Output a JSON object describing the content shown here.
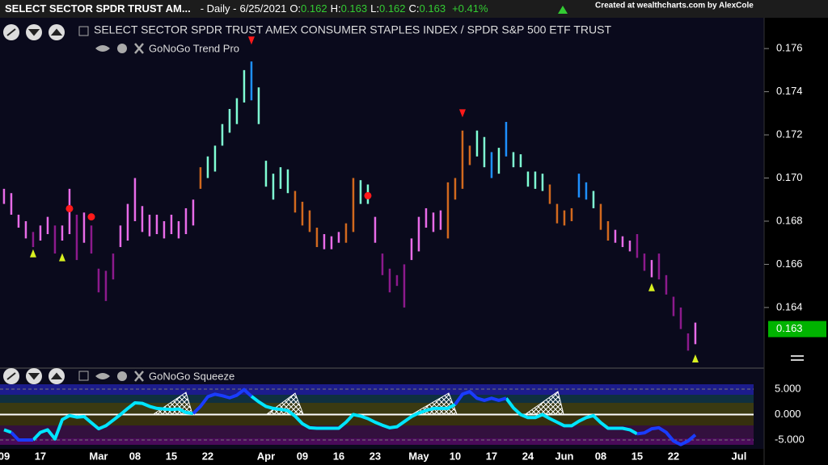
{
  "header": {
    "symbol": "SELECT SECTOR SPDR TRUST AM...",
    "interval": "- Daily -",
    "date": "6/25/2021",
    "ohlc": [
      {
        "label": "O:",
        "value": 0.162
      },
      {
        "label": "H:",
        "value": 0.163
      },
      {
        "label": "L:",
        "value": 0.162
      },
      {
        "label": "C:",
        "value": 0.163
      }
    ],
    "change": "+0.41%",
    "credit": "Created at wealthcharts.com by AlexCole"
  },
  "chart_data": [
    {
      "type": "range_bar",
      "title": "SELECT SECTOR SPDR TRUST AMEX CONSUMER STAPLES INDEX / SPDR S&P 500 ETF TRUST",
      "indicator": "GoNoGo Trend Pro",
      "xlim": [
        -0.55,
        104.45
      ],
      "ylim": [
        0.16119,
        0.17825
      ],
      "yticks": [
        0.164,
        0.166,
        0.168,
        {
          "value": 0.17,
          "label": "0.170"
        },
        0.172,
        0.174,
        0.176
      ],
      "high": [
        0.1695,
        0.1693,
        0.1683,
        0.168,
        0.1675,
        0.1678,
        0.1682,
        0.1678,
        0.1678,
        0.1695,
        0.1683,
        0.1684,
        0.1678,
        0.1658,
        0.1657,
        0.1665,
        0.1678,
        0.1688,
        0.17,
        0.1687,
        0.1683,
        0.1683,
        0.168,
        0.1683,
        0.168,
        0.1686,
        0.169,
        0.1705,
        0.171,
        0.1715,
        0.1725,
        0.1732,
        0.1737,
        0.175,
        0.1754,
        0.1742,
        0.1708,
        0.1702,
        0.1705,
        0.1704,
        0.1694,
        0.1689,
        0.1685,
        0.1677,
        0.1674,
        0.1673,
        0.1675,
        0.1679,
        0.17,
        0.1699,
        0.1697,
        0.1682,
        0.1665,
        0.1658,
        0.1655,
        0.166,
        0.1672,
        0.1682,
        0.1686,
        0.1684,
        0.1685,
        0.1698,
        0.17,
        0.1722,
        0.1715,
        0.1722,
        0.1719,
        0.1712,
        0.1714,
        0.1726,
        0.1712,
        0.1711,
        0.1703,
        0.1703,
        0.1702,
        0.1697,
        0.1688,
        0.1685,
        0.1686,
        0.1702,
        0.1698,
        0.1694,
        0.1688,
        0.168,
        0.1676,
        0.1673,
        0.1671,
        0.1674,
        0.1665,
        0.1662,
        0.1665,
        0.1655,
        0.1645,
        0.164,
        0.1628,
        0.1633
      ],
      "low": [
        0.1688,
        0.1683,
        0.1677,
        0.1672,
        0.1668,
        0.1671,
        0.1674,
        0.1665,
        0.1671,
        0.1674,
        0.1662,
        0.167,
        0.1665,
        0.1647,
        0.1643,
        0.1653,
        0.1668,
        0.1671,
        0.168,
        0.1675,
        0.1673,
        0.1674,
        0.1672,
        0.1674,
        0.1672,
        0.1674,
        0.1678,
        0.1695,
        0.17,
        0.1703,
        0.1715,
        0.1721,
        0.1725,
        0.1735,
        0.1736,
        0.1725,
        0.1696,
        0.169,
        0.1695,
        0.1693,
        0.1684,
        0.1678,
        0.1675,
        0.1668,
        0.1667,
        0.1667,
        0.167,
        0.167,
        0.1675,
        0.1688,
        0.1688,
        0.167,
        0.1655,
        0.1647,
        0.165,
        0.164,
        0.1662,
        0.1666,
        0.1677,
        0.1675,
        0.1676,
        0.1672,
        0.169,
        0.1695,
        0.1706,
        0.171,
        0.1705,
        0.17,
        0.1702,
        0.171,
        0.1705,
        0.1705,
        0.1696,
        0.1695,
        0.1694,
        0.1688,
        0.1679,
        0.1678,
        0.168,
        0.1691,
        0.169,
        0.1686,
        0.1676,
        0.1671,
        0.167,
        0.1668,
        0.1666,
        0.1663,
        0.1657,
        0.1654,
        0.1653,
        0.1646,
        0.1636,
        0.163,
        0.162,
        0.1623
      ],
      "colors": [
        "#e86be8",
        "#e86be8",
        "#e86be8",
        "#e86be8",
        "#8c1a8c",
        "#e86be8",
        "#e86be8",
        "#8c1a8c",
        "#e86be8",
        "#e86be8",
        "#8c1a8c",
        "#e86be8",
        "#8c1a8c",
        "#8c1a8c",
        "#8c1a8c",
        "#8c1a8c",
        "#e86be8",
        "#e86be8",
        "#e86be8",
        "#e86be8",
        "#e86be8",
        "#e86be8",
        "#e86be8",
        "#e86be8",
        "#e86be8",
        "#e86be8",
        "#e86be8",
        "#d2691e",
        "#7fffd4",
        "#7fffd4",
        "#7fffd4",
        "#7fffd4",
        "#7fffd4",
        "#7fffd4",
        "#1e90ff",
        "#7fffd4",
        "#7fffd4",
        "#7fffd4",
        "#7fffd4",
        "#7fffd4",
        "#d2691e",
        "#d2691e",
        "#d2691e",
        "#d2691e",
        "#e86be8",
        "#e86be8",
        "#e86be8",
        "#d2691e",
        "#d2691e",
        "#7fffd4",
        "#7fffd4",
        "#e86be8",
        "#8c1a8c",
        "#8c1a8c",
        "#8c1a8c",
        "#8c1a8c",
        "#e86be8",
        "#e86be8",
        "#e86be8",
        "#e86be8",
        "#e86be8",
        "#d2691e",
        "#d2691e",
        "#d2691e",
        "#d2691e",
        "#7fffd4",
        "#7fffd4",
        "#1e90ff",
        "#7fffd4",
        "#1e90ff",
        "#7fffd4",
        "#7fffd4",
        "#7fffd4",
        "#7fffd4",
        "#7fffd4",
        "#d2691e",
        "#d2691e",
        "#d2691e",
        "#d2691e",
        "#1e90ff",
        "#1e90ff",
        "#7fffd4",
        "#d2691e",
        "#d2691e",
        "#e86be8",
        "#e86be8",
        "#e86be8",
        "#8c1a8c",
        "#8c1a8c",
        "#e86be8",
        "#8c1a8c",
        "#8c1a8c",
        "#8c1a8c",
        "#8c1a8c",
        "#8c1a8c",
        "#e86be8"
      ],
      "last_value": 0.163,
      "last_value_color": "#00b300",
      "signals": [
        {
          "x": 34,
          "y": 0.17637,
          "shape": "down-triangle",
          "color": "#ff1a1a"
        },
        {
          "x": 63,
          "y": 0.173,
          "shape": "down-triangle",
          "color": "#ff1a1a"
        },
        {
          "x": 9,
          "y": 0.16858,
          "shape": "dot",
          "color": "#ff1a1a"
        },
        {
          "x": 12,
          "y": 0.1682,
          "shape": "dot",
          "color": "#ff1a1a"
        },
        {
          "x": 50,
          "y": 0.16918,
          "shape": "dot",
          "color": "#ff1a1a"
        },
        {
          "x": 4,
          "y": 0.16651,
          "shape": "up-triangle",
          "color": "#d8f020"
        },
        {
          "x": 8,
          "y": 0.16633,
          "shape": "up-triangle",
          "color": "#d8f020"
        },
        {
          "x": 89,
          "y": 0.16494,
          "shape": "up-triangle",
          "color": "#d8f020"
        },
        {
          "x": 95,
          "y": 0.16164,
          "shape": "up-triangle",
          "color": "#d8f020"
        }
      ]
    },
    {
      "type": "line",
      "title": "GoNoGo Squeeze",
      "xlim": [
        -0.55,
        104.45
      ],
      "ylim": [
        -5.95,
        5.95
      ],
      "yticks": [
        {
          "value": -5,
          "label": "-5.000"
        },
        {
          "value": 0,
          "label": "0.000"
        },
        {
          "value": 5,
          "label": "5.000"
        }
      ],
      "xticks": [
        {
          "value": 0,
          "label": "09"
        },
        {
          "value": 5,
          "label": "17"
        },
        {
          "value": 13,
          "label": "Mar"
        },
        {
          "value": 18,
          "label": "08"
        },
        {
          "value": 23,
          "label": "15"
        },
        {
          "value": 28,
          "label": "22"
        },
        {
          "value": 36,
          "label": "Apr"
        },
        {
          "value": 41,
          "label": "09"
        },
        {
          "value": 46,
          "label": "16"
        },
        {
          "value": 51,
          "label": "23"
        },
        {
          "value": 57,
          "label": "May"
        },
        {
          "value": 62,
          "label": "10"
        },
        {
          "value": 67,
          "label": "17"
        },
        {
          "value": 72,
          "label": "24"
        },
        {
          "value": 77,
          "label": "Jun"
        },
        {
          "value": 82,
          "label": "08"
        },
        {
          "value": 87,
          "label": "15"
        },
        {
          "value": 92,
          "label": "22"
        },
        {
          "value": 101,
          "label": "Jul"
        }
      ],
      "zero_line_color": "#ffffff",
      "series": [
        {
          "color": "#00e5ff",
          "values": [
            -3.0,
            -3.5,
            null,
            null,
            -5,
            -3.5,
            -3,
            -4.8,
            -1,
            -0.2,
            -0.5,
            -0.4,
            -1.6,
            -2.8,
            -2.2,
            -1.1,
            0,
            1.2,
            2.3,
            2.2,
            1.6,
            1.2,
            1.1,
            1.0,
            1.1,
            0.4,
            0.2,
            null,
            null,
            null,
            null,
            null,
            null,
            null,
            3.6,
            2.5,
            1.6,
            1.2,
            1.0,
            0.8,
            -0.3,
            -1.8,
            -2.6,
            -2.7,
            -2.7,
            -2.7,
            -2.7,
            -1.5,
            0,
            -0.3,
            -0.8,
            -1.5,
            -2.1,
            -2.6,
            -2.4,
            -1.4,
            -0.4,
            0.3,
            0.8,
            1.2,
            1.2,
            1.2,
            2.0,
            null,
            null,
            null,
            null,
            null,
            null,
            3.2,
            1.3,
            0,
            -0.6,
            -0.6,
            0,
            -0.8,
            -1.5,
            -2.2,
            -2.2,
            -1.3,
            -0.6,
            -0.2,
            -1.6,
            -2.7,
            -2.7,
            -2.7,
            -3.0,
            -3.8,
            null,
            null,
            null,
            null,
            null,
            null,
            null,
            null
          ]
        },
        {
          "color": "#1a3cff",
          "values": [
            null,
            -3.5,
            -5,
            -5,
            -5,
            null,
            null,
            null,
            null,
            null,
            null,
            null,
            null,
            null,
            null,
            null,
            null,
            null,
            null,
            null,
            null,
            null,
            null,
            null,
            null,
            null,
            0.2,
            1.6,
            3.5,
            4.0,
            3.7,
            3.3,
            3.8,
            4.9,
            3.6,
            null,
            null,
            null,
            null,
            null,
            null,
            null,
            null,
            null,
            null,
            null,
            null,
            null,
            null,
            null,
            null,
            null,
            null,
            null,
            null,
            null,
            null,
            null,
            null,
            null,
            null,
            null,
            2.0,
            4.0,
            4.5,
            3.2,
            2.8,
            3.2,
            2.8,
            3.2,
            null,
            null,
            null,
            null,
            null,
            null,
            null,
            null,
            null,
            null,
            null,
            null,
            null,
            null,
            null,
            null,
            null,
            -3.8,
            -3.6,
            -2.8,
            -2.6,
            -3.5,
            -5.2,
            -5.9,
            -5.2,
            -4.0
          ]
        }
      ]
    }
  ]
}
